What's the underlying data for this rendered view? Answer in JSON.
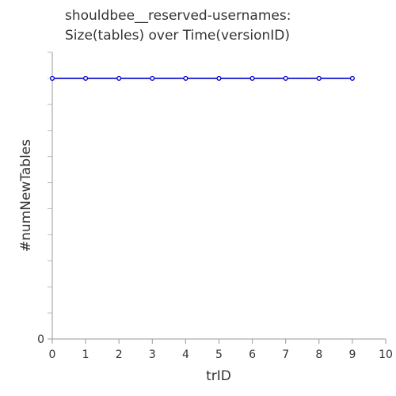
{
  "chart_data": {
    "type": "line",
    "title_lines": [
      "shouldbee__reserved-usernames:",
      "Size(tables) over Time(versionID)"
    ],
    "xlabel": "trID",
    "ylabel": "#numNewTables",
    "xlim": [
      0,
      10
    ],
    "ylim": [
      0,
      11
    ],
    "x_ticks": [
      0,
      1,
      2,
      3,
      4,
      5,
      6,
      7,
      8,
      9,
      10
    ],
    "y_tick_labels": [
      {
        "value": 0,
        "label": "0"
      }
    ],
    "y_minor_ticks": [
      1,
      2,
      3,
      4,
      5,
      6,
      7,
      8,
      9,
      10,
      11
    ],
    "grid": false,
    "series": [
      {
        "color": "#0000cc",
        "x": [
          0,
          1,
          2,
          3,
          4,
          5,
          6,
          7,
          8,
          9
        ],
        "y": [
          10,
          10,
          10,
          10,
          10,
          10,
          10,
          10,
          10,
          10
        ]
      }
    ]
  }
}
